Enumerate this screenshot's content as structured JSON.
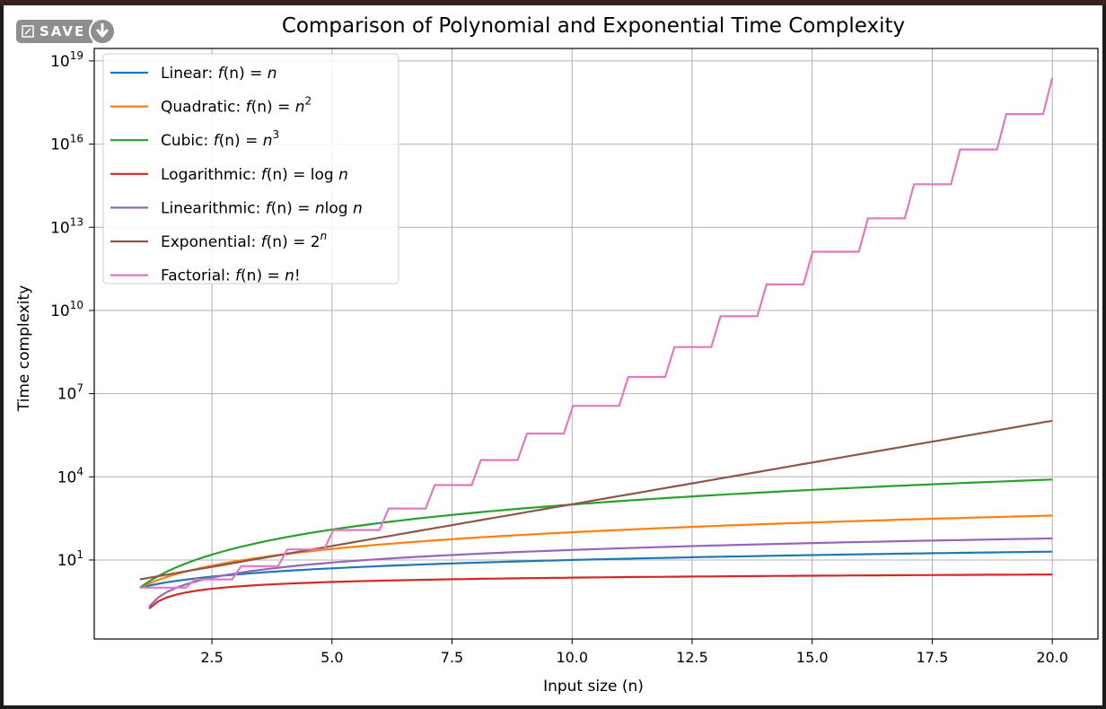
{
  "save_badge": {
    "label": "SAVE"
  },
  "chart_data": {
    "type": "line",
    "title": "Comparison of Polynomial and Exponential Time Complexity",
    "xlabel": "Input size (n)",
    "ylabel": "Time complexity",
    "yscale": "log",
    "xlim": [
      0.05,
      20.95
    ],
    "ylim_log10": [
      -1.85,
      19.45
    ],
    "xticks": [
      2.5,
      5.0,
      7.5,
      10.0,
      12.5,
      15.0,
      17.5,
      20.0
    ],
    "xtick_labels": [
      "2.5",
      "5.0",
      "7.5",
      "10.0",
      "12.5",
      "15.0",
      "17.5",
      "20.0"
    ],
    "yticks_exp": [
      1,
      4,
      7,
      10,
      13,
      16,
      19
    ],
    "ytick_base": "10",
    "grid": true,
    "legend_position": "upper-left",
    "x_range": [
      1,
      20
    ],
    "series": [
      {
        "name": "Linear: f(n) = n",
        "legend": {
          "pre": "Linear: ",
          "fn": "f",
          "post": "(n) = ",
          "expr": "n",
          "sup": ""
        },
        "formula": "linear",
        "color": "#1f77b4"
      },
      {
        "name": "Quadratic: f(n) = n²",
        "legend": {
          "pre": "Quadratic: ",
          "fn": "f",
          "post": "(n) = ",
          "expr": "n",
          "sup": "2"
        },
        "formula": "quadratic",
        "color": "#ff7f0e"
      },
      {
        "name": "Cubic: f(n) = n³",
        "legend": {
          "pre": "Cubic: ",
          "fn": "f",
          "post": "(n) = ",
          "expr": "n",
          "sup": "3"
        },
        "formula": "cubic",
        "color": "#2ca02c"
      },
      {
        "name": "Logarithmic: f(n) = log n",
        "legend": {
          "pre": "Logarithmic: ",
          "fn": "f",
          "post": "(n) = log ",
          "expr": "n",
          "sup": ""
        },
        "formula": "log",
        "color": "#d62728"
      },
      {
        "name": "Linearithmic: f(n) = n log n",
        "legend": {
          "pre": "Linearithmic: ",
          "fn": "f",
          "post": "(n) = ",
          "expr": "n",
          "extra": "log ",
          "expr2": "n",
          "sup": ""
        },
        "formula": "nlogn",
        "color": "#9467bd"
      },
      {
        "name": "Exponential: f(n) = 2ⁿ",
        "legend": {
          "pre": "Exponential: ",
          "fn": "f",
          "post": "(n) = 2",
          "expr": "",
          "sup": "n"
        },
        "formula": "exp2",
        "color": "#8c564b"
      },
      {
        "name": "Factorial: f(n) = n!",
        "legend": {
          "pre": "Factorial: ",
          "fn": "f",
          "post": "(n) = ",
          "expr": "n",
          "sup": "",
          "tail": "!"
        },
        "formula": "factorial",
        "color": "#e377c2"
      }
    ]
  }
}
